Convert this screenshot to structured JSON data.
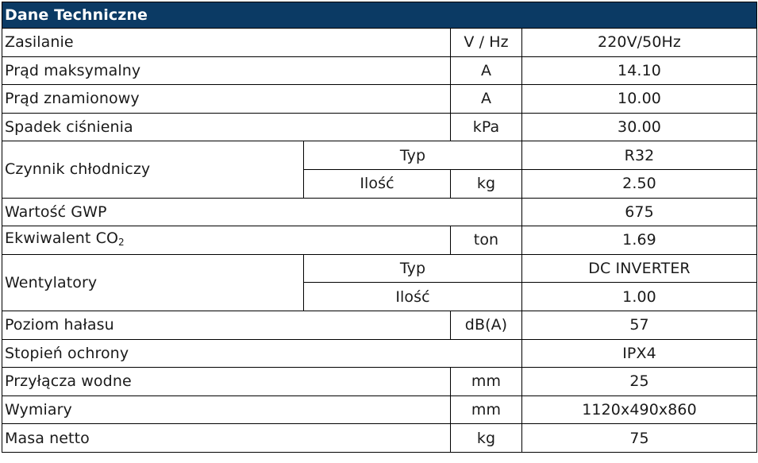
{
  "title": "Dane Techniczne",
  "rows": {
    "zasilanie": {
      "label": "Zasilanie",
      "unit": "V / Hz",
      "value": "220V/50Hz"
    },
    "prad_max": {
      "label": "Prąd maksymalny",
      "unit": "A",
      "value": "14.10"
    },
    "prad_znam": {
      "label": "Prąd znamionowy",
      "unit": "A",
      "value": "10.00"
    },
    "spadek": {
      "label": "Spadek ciśnienia",
      "unit": "kPa",
      "value": "30.00"
    },
    "czynnik": {
      "label": "Czynnik chłodniczy",
      "typ_label": "Typ",
      "typ_value": "R32",
      "ilosc_label": "Ilość",
      "ilosc_unit": "kg",
      "ilosc_value": "2.50"
    },
    "gwp": {
      "label": "Wartość GWP",
      "value": "675"
    },
    "co2": {
      "label_prefix": "Ekwiwalent CO",
      "label_sub": "2",
      "unit": "ton",
      "value": "1.69"
    },
    "wentylatory": {
      "label": "Wentylatory",
      "typ_label": "Typ",
      "typ_value": "DC INVERTER",
      "ilosc_label": "Ilość",
      "ilosc_value": "1.00"
    },
    "halas": {
      "label": "Poziom hałasu",
      "unit": "dB(A)",
      "value": "57"
    },
    "ochrona": {
      "label": "Stopień ochrony",
      "value": "IPX4"
    },
    "przylacza": {
      "label": "Przyłącza wodne",
      "unit": "mm",
      "value": "25"
    },
    "wymiary": {
      "label": "Wymiary",
      "unit": "mm",
      "value": "1120x490x860"
    },
    "masa": {
      "label": "Masa netto",
      "unit": "kg",
      "value": "75"
    }
  }
}
